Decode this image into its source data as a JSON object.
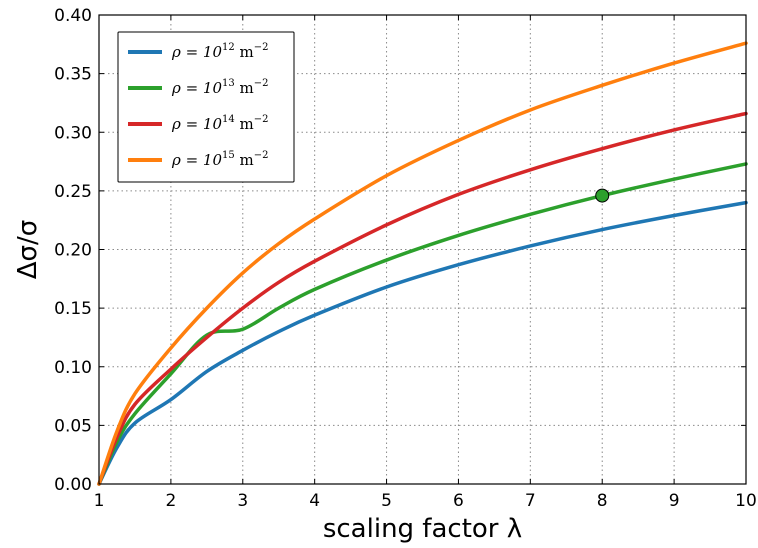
{
  "chart_data": {
    "type": "line",
    "title": "",
    "xlabel": "scaling factor λ",
    "ylabel": "Δσ/σ",
    "xlim": [
      1,
      10
    ],
    "ylim": [
      0.0,
      0.4
    ],
    "xticks": [
      "1",
      "2",
      "3",
      "4",
      "5",
      "6",
      "7",
      "8",
      "9",
      "10"
    ],
    "yticks": [
      "0.00",
      "0.05",
      "0.10",
      "0.15",
      "0.20",
      "0.25",
      "0.30",
      "0.35",
      "0.40"
    ],
    "grid": true,
    "legend_position": "top-left",
    "x": [
      1,
      1.25,
      1.5,
      2,
      2.5,
      3,
      3.5,
      4,
      5,
      6,
      7,
      8,
      9,
      10
    ],
    "series": [
      {
        "name_parts": [
          "ρ = 10",
          "12",
          " m",
          "−2"
        ],
        "color": "#1f77b4",
        "values": [
          0.0,
          0.031,
          0.052,
          0.072,
          0.096,
          0.114,
          0.13,
          0.144,
          0.168,
          0.187,
          0.203,
          0.217,
          0.229,
          0.24
        ]
      },
      {
        "name_parts": [
          "ρ = 10",
          "13",
          " m",
          "−2"
        ],
        "color": "#2ca02c",
        "values": [
          0.0,
          0.036,
          0.06,
          0.094,
          0.127,
          0.132,
          0.15,
          0.166,
          0.191,
          0.212,
          0.23,
          0.246,
          0.26,
          0.273
        ]
      },
      {
        "name_parts": [
          "ρ = 10",
          "14",
          " m",
          "−2"
        ],
        "color": "#d62728",
        "values": [
          0.0,
          0.04,
          0.068,
          0.098,
          0.125,
          0.15,
          0.172,
          0.19,
          0.221,
          0.247,
          0.268,
          0.286,
          0.302,
          0.316
        ]
      },
      {
        "name_parts": [
          "ρ = 10",
          "15",
          " m",
          "−2"
        ],
        "color": "#ff7f0e",
        "values": [
          0.0,
          0.045,
          0.077,
          0.116,
          0.15,
          0.18,
          0.205,
          0.226,
          0.263,
          0.293,
          0.319,
          0.34,
          0.359,
          0.376
        ]
      }
    ],
    "marker": {
      "x": 8,
      "y": 0.246,
      "color": "#2ca02c"
    }
  }
}
